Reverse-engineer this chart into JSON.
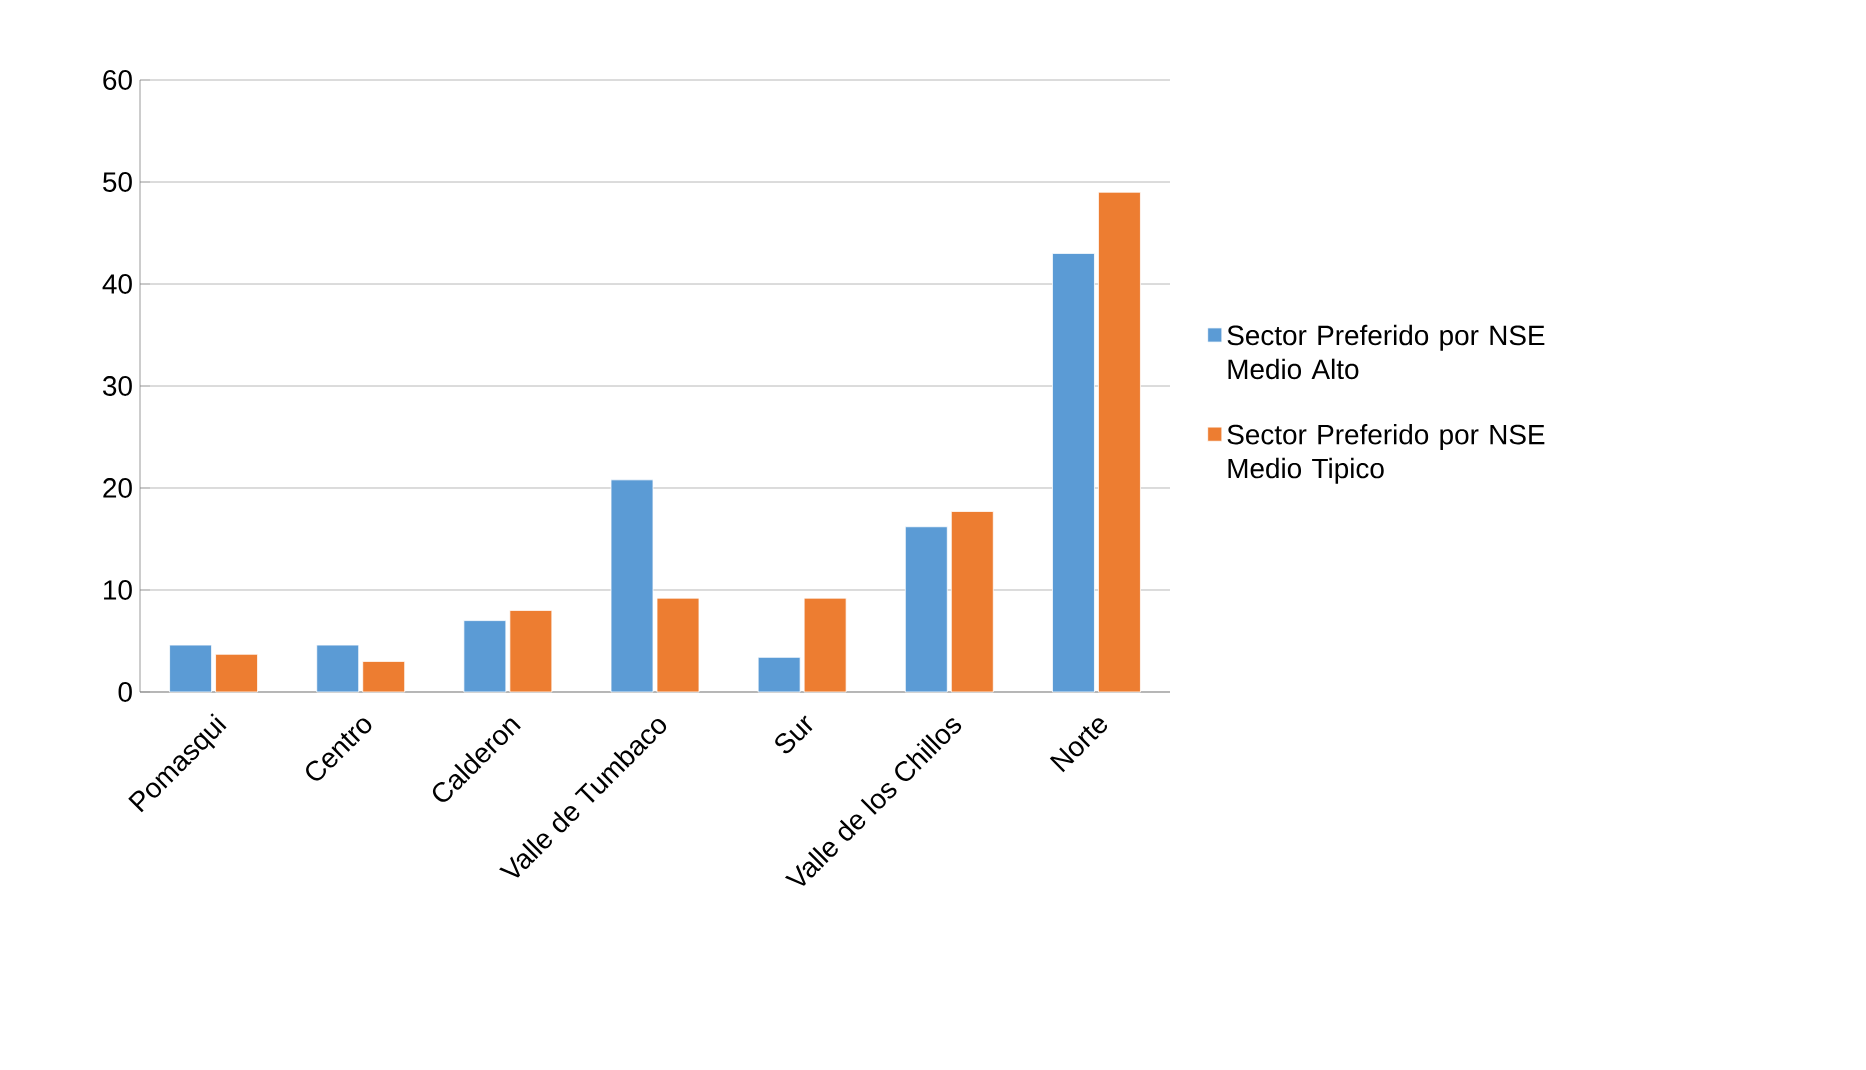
{
  "chart_data": {
    "type": "bar",
    "categories": [
      "Pomasqui",
      "Centro",
      "Calderon",
      "Valle de Tumbaco",
      "Sur",
      "Valle de los Chillos",
      "Norte"
    ],
    "series": [
      {
        "name": "Sector Preferido por NSE Medio Alto",
        "color": "#5b9bd5",
        "values": [
          4.6,
          4.6,
          7.0,
          20.8,
          3.4,
          16.2,
          43.0
        ]
      },
      {
        "name": "Sector Preferido por NSE Medio Tipico",
        "color": "#ed7d31",
        "values": [
          3.7,
          3.0,
          8.0,
          9.2,
          9.2,
          17.7,
          49.0
        ]
      }
    ],
    "ylim": [
      0,
      60
    ],
    "yticks": [
      0,
      10,
      20,
      30,
      40,
      50,
      60
    ],
    "grid": "y",
    "legend": "right"
  }
}
